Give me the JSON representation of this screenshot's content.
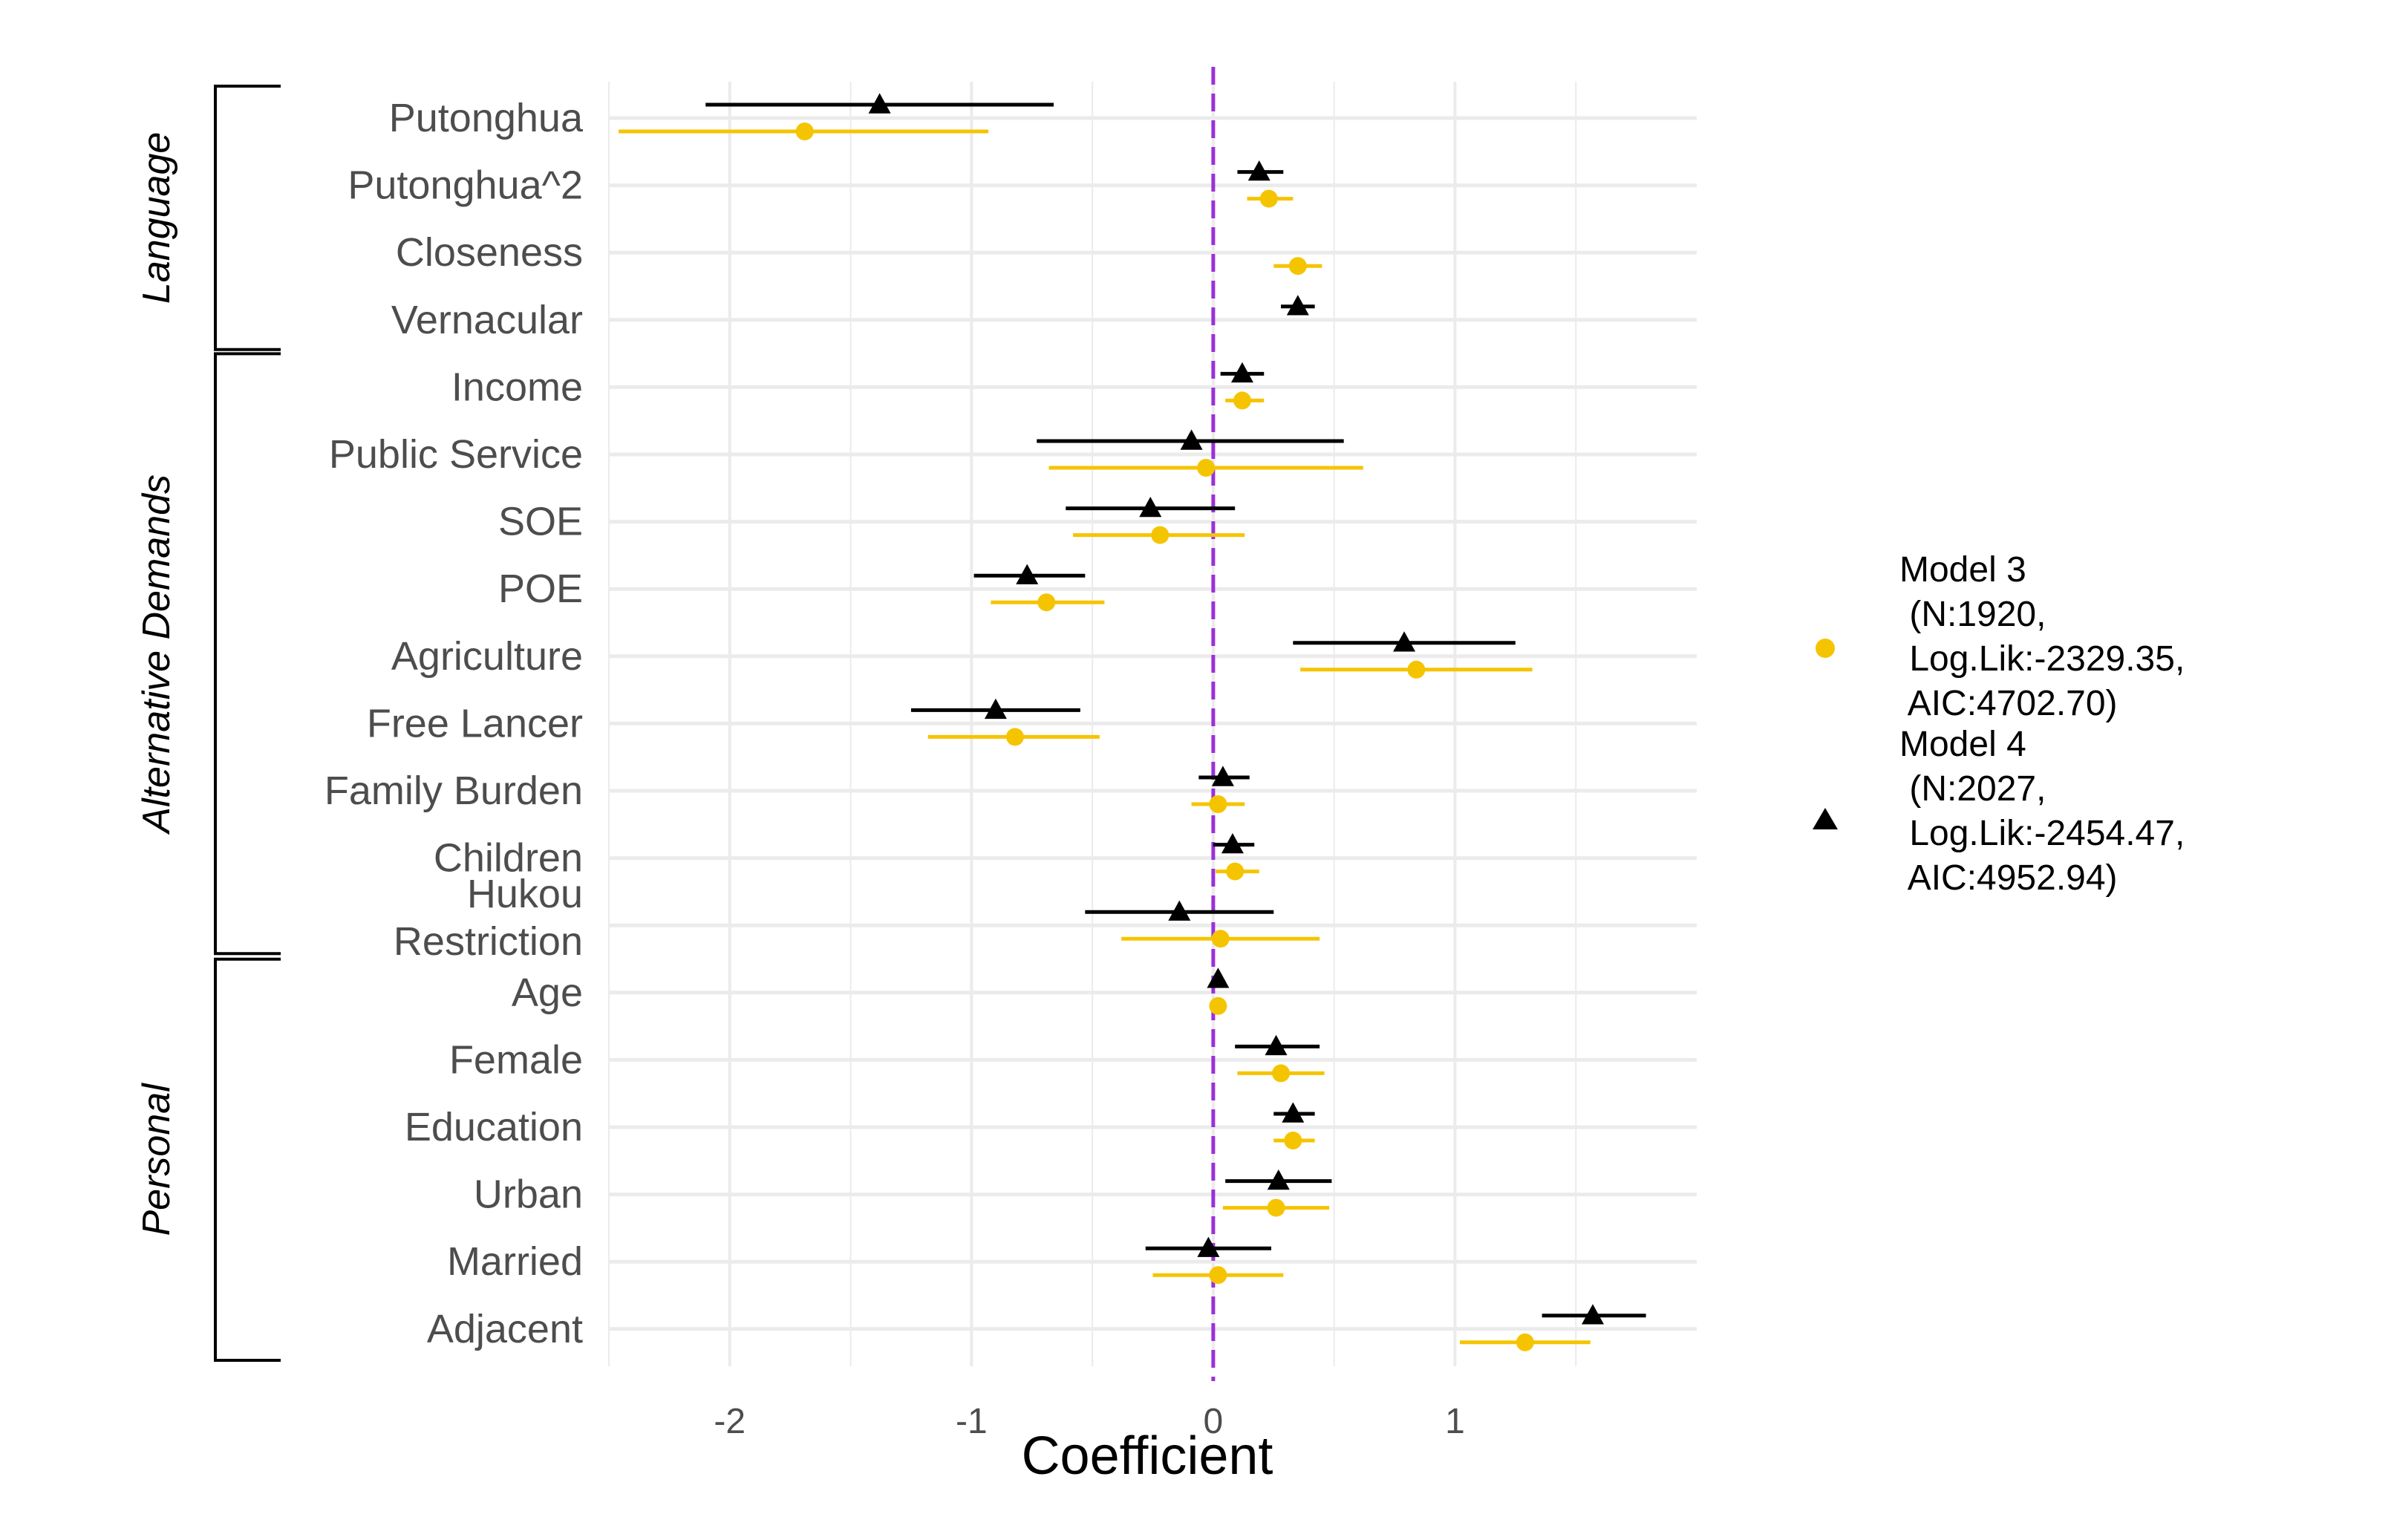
{
  "chart_data": {
    "type": "scatter",
    "subtype": "coefficient-plot",
    "title": "",
    "xlabel": "Coefficient",
    "ylabel": "",
    "xlim": [
      -2.5,
      2.0
    ],
    "xticks": [
      "-2",
      "-1",
      "0",
      "1"
    ],
    "xtick_values": [
      -2,
      -1,
      0,
      1
    ],
    "reference_line": {
      "x": 0,
      "color": "#9B30D9",
      "style": "dashed"
    },
    "grid": true,
    "legend_position": "right",
    "categories": [
      "Putonghua",
      "Putonghua^2",
      "Closeness",
      "Vernacular",
      "Income",
      "Public Service",
      "SOE",
      "POE",
      "Agriculture",
      "Free Lancer",
      "Family Burden",
      "Children",
      "Hukou Restriction",
      "Age",
      "Female",
      "Education",
      "Urban",
      "Married",
      "Adjacent"
    ],
    "category_display": [
      [
        "Putonghua"
      ],
      [
        "Putonghua^2"
      ],
      [
        "Closeness"
      ],
      [
        "Vernacular"
      ],
      [
        "Income"
      ],
      [
        "Public Service"
      ],
      [
        "SOE"
      ],
      [
        "POE"
      ],
      [
        "Agriculture"
      ],
      [
        "Free Lancer"
      ],
      [
        "Family Burden"
      ],
      [
        "Children"
      ],
      [
        "Hukou",
        "Restriction"
      ],
      [
        "Age"
      ],
      [
        "Female"
      ],
      [
        "Education"
      ],
      [
        "Urban"
      ],
      [
        "Married"
      ],
      [
        "Adjacent"
      ]
    ],
    "groups": [
      {
        "label": "Language",
        "categories": [
          "Putonghua",
          "Putonghua^2",
          "Closeness",
          "Vernacular"
        ]
      },
      {
        "label": "Alternative Demands",
        "categories": [
          "Income",
          "Public Service",
          "SOE",
          "POE",
          "Agriculture",
          "Free Lancer",
          "Family Burden",
          "Children",
          "Hukou Restriction"
        ]
      },
      {
        "label": "Personal",
        "categories": [
          "Age",
          "Female",
          "Education",
          "Urban",
          "Married",
          "Adjacent"
        ]
      }
    ],
    "series": [
      {
        "name_lines": [
          "Model 3",
          " (N:1920,",
          " Log.Lik:-2329.35,",
          " AIC:4702.70)"
        ],
        "color": "#F5C400",
        "marker": "circle",
        "points": [
          {
            "category": "Putonghua",
            "estimate": -1.69,
            "low": -2.46,
            "high": -0.93
          },
          {
            "category": "Putonghua^2",
            "estimate": 0.23,
            "low": 0.14,
            "high": 0.33
          },
          {
            "category": "Closeness",
            "estimate": 0.35,
            "low": 0.25,
            "high": 0.45
          },
          {
            "category": "Income",
            "estimate": 0.12,
            "low": 0.05,
            "high": 0.21
          },
          {
            "category": "Public Service",
            "estimate": -0.03,
            "low": -0.68,
            "high": 0.62
          },
          {
            "category": "SOE",
            "estimate": -0.22,
            "low": -0.58,
            "high": 0.13
          },
          {
            "category": "POE",
            "estimate": -0.69,
            "low": -0.92,
            "high": -0.45
          },
          {
            "category": "Agriculture",
            "estimate": 0.84,
            "low": 0.36,
            "high": 1.32
          },
          {
            "category": "Free Lancer",
            "estimate": -0.82,
            "low": -1.18,
            "high": -0.47
          },
          {
            "category": "Family Burden",
            "estimate": 0.02,
            "low": -0.09,
            "high": 0.13
          },
          {
            "category": "Children",
            "estimate": 0.09,
            "low": 0.01,
            "high": 0.19
          },
          {
            "category": "Hukou Restriction",
            "estimate": 0.03,
            "low": -0.38,
            "high": 0.44
          },
          {
            "category": "Age",
            "estimate": 0.02,
            "low": 0.01,
            "high": 0.03
          },
          {
            "category": "Female",
            "estimate": 0.28,
            "low": 0.1,
            "high": 0.46
          },
          {
            "category": "Education",
            "estimate": 0.33,
            "low": 0.25,
            "high": 0.42
          },
          {
            "category": "Urban",
            "estimate": 0.26,
            "low": 0.04,
            "high": 0.48
          },
          {
            "category": "Married",
            "estimate": 0.02,
            "low": -0.25,
            "high": 0.29
          },
          {
            "category": "Adjacent",
            "estimate": 1.29,
            "low": 1.02,
            "high": 1.56
          }
        ]
      },
      {
        "name_lines": [
          "Model 4",
          " (N:2027,",
          " Log.Lik:-2454.47,",
          " AIC:4952.94)"
        ],
        "color": "#000000",
        "marker": "triangle",
        "points": [
          {
            "category": "Putonghua",
            "estimate": -1.38,
            "low": -2.1,
            "high": -0.66
          },
          {
            "category": "Putonghua^2",
            "estimate": 0.19,
            "low": 0.1,
            "high": 0.29
          },
          {
            "category": "Vernacular",
            "estimate": 0.35,
            "low": 0.28,
            "high": 0.42
          },
          {
            "category": "Income",
            "estimate": 0.12,
            "low": 0.03,
            "high": 0.21
          },
          {
            "category": "Public Service",
            "estimate": -0.09,
            "low": -0.73,
            "high": 0.54
          },
          {
            "category": "SOE",
            "estimate": -0.26,
            "low": -0.61,
            "high": 0.09
          },
          {
            "category": "POE",
            "estimate": -0.77,
            "low": -0.99,
            "high": -0.53
          },
          {
            "category": "Agriculture",
            "estimate": 0.79,
            "low": 0.33,
            "high": 1.25
          },
          {
            "category": "Free Lancer",
            "estimate": -0.9,
            "low": -1.25,
            "high": -0.55
          },
          {
            "category": "Family Burden",
            "estimate": 0.04,
            "low": -0.06,
            "high": 0.15
          },
          {
            "category": "Children",
            "estimate": 0.08,
            "low": 0.0,
            "high": 0.17
          },
          {
            "category": "Hukou Restriction",
            "estimate": -0.14,
            "low": -0.53,
            "high": 0.25
          },
          {
            "category": "Age",
            "estimate": 0.02,
            "low": 0.0,
            "high": 0.03
          },
          {
            "category": "Female",
            "estimate": 0.26,
            "low": 0.09,
            "high": 0.44
          },
          {
            "category": "Education",
            "estimate": 0.33,
            "low": 0.25,
            "high": 0.42
          },
          {
            "category": "Urban",
            "estimate": 0.27,
            "low": 0.05,
            "high": 0.49
          },
          {
            "category": "Married",
            "estimate": -0.02,
            "low": -0.28,
            "high": 0.24
          },
          {
            "category": "Adjacent",
            "estimate": 1.57,
            "low": 1.36,
            "high": 1.79
          }
        ]
      }
    ]
  }
}
